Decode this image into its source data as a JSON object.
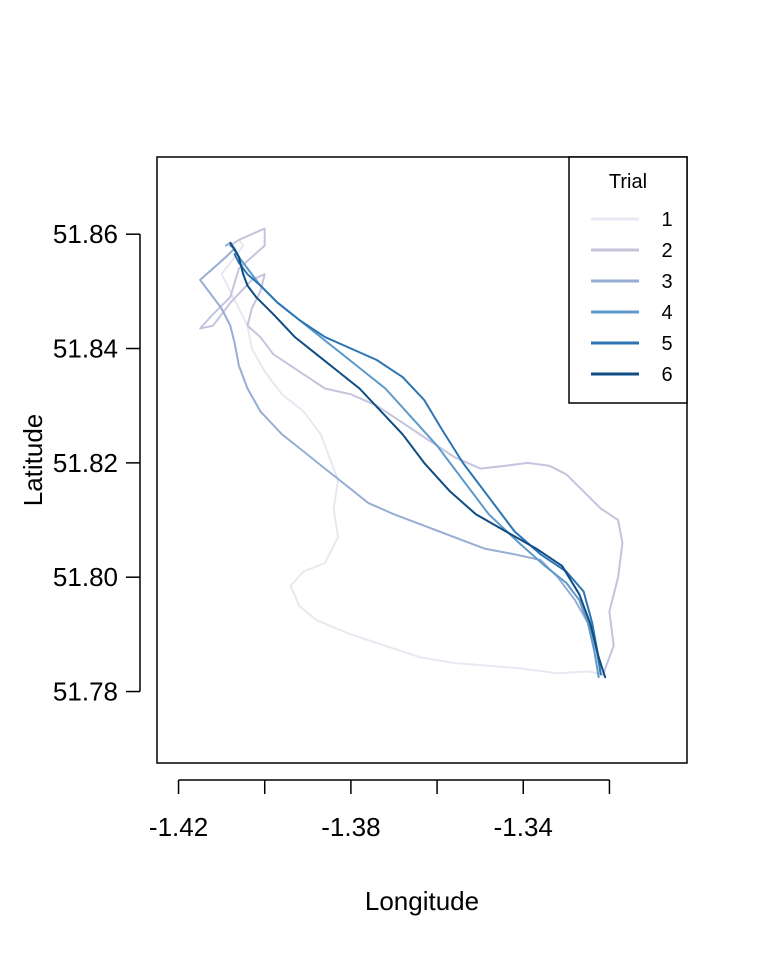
{
  "chart_data": {
    "type": "line",
    "title": "",
    "xlabel": "Longitude",
    "ylabel": "Latitude",
    "xlim": [
      -1.425,
      -1.302
    ],
    "ylim": [
      51.7675,
      51.8735
    ],
    "xticks": [
      -1.42,
      -1.4,
      -1.38,
      -1.36,
      -1.34,
      -1.32
    ],
    "xtick_labels": [
      "-1.42",
      "",
      "-1.38",
      "",
      "-1.34",
      ""
    ],
    "yticks": [
      51.78,
      51.8,
      51.82,
      51.84,
      51.86
    ],
    "ytick_labels": [
      "51.78",
      "51.80",
      "51.82",
      "51.84",
      "51.86"
    ],
    "grid": false,
    "legend": {
      "title": "Trial",
      "position": "top-right"
    },
    "series": [
      {
        "name": "1",
        "color": "#e8e8f2",
        "x": [
          -1.3215,
          -1.325,
          -1.332,
          -1.34,
          -1.348,
          -1.356,
          -1.364,
          -1.372,
          -1.38,
          -1.388,
          -1.392,
          -1.394,
          -1.391,
          -1.386,
          -1.383,
          -1.384,
          -1.383,
          -1.385,
          -1.387,
          -1.391,
          -1.396,
          -1.4,
          -1.403,
          -1.404,
          -1.406,
          -1.408,
          -1.41,
          -1.407,
          -1.405,
          -1.406
        ],
        "y": [
          51.783,
          51.7835,
          51.7832,
          51.784,
          51.7845,
          51.785,
          51.786,
          51.788,
          51.79,
          51.7925,
          51.795,
          51.7985,
          51.801,
          51.8025,
          51.807,
          51.812,
          51.817,
          51.821,
          51.825,
          51.829,
          51.832,
          51.836,
          51.84,
          51.844,
          51.847,
          51.85,
          51.853,
          51.856,
          51.858,
          51.859
        ]
      },
      {
        "name": "2",
        "color": "#c4c4dd",
        "x": [
          -1.3215,
          -1.319,
          -1.32,
          -1.318,
          -1.317,
          -1.318,
          -1.322,
          -1.326,
          -1.33,
          -1.334,
          -1.339,
          -1.344,
          -1.35,
          -1.356,
          -1.362,
          -1.368,
          -1.374,
          -1.38,
          -1.386,
          -1.392,
          -1.398,
          -1.401,
          -1.404,
          -1.403,
          -1.401,
          -1.4,
          -1.403,
          -1.408,
          -1.412,
          -1.415,
          -1.412,
          -1.408,
          -1.406,
          -1.4,
          -1.4,
          -1.403,
          -1.406,
          -1.408
        ],
        "y": [
          51.783,
          51.788,
          51.794,
          51.8,
          51.806,
          51.81,
          51.812,
          51.815,
          51.818,
          51.8195,
          51.82,
          51.8195,
          51.819,
          51.821,
          51.824,
          51.827,
          51.83,
          51.832,
          51.833,
          51.836,
          51.839,
          51.842,
          51.844,
          51.847,
          51.85,
          51.853,
          51.852,
          51.848,
          51.844,
          51.8435,
          51.846,
          51.849,
          51.854,
          51.858,
          51.861,
          51.86,
          51.859,
          51.858
        ]
      },
      {
        "name": "3",
        "color": "#97aed4",
        "x": [
          -1.322,
          -1.323,
          -1.325,
          -1.328,
          -1.332,
          -1.336,
          -1.342,
          -1.349,
          -1.356,
          -1.363,
          -1.37,
          -1.376,
          -1.381,
          -1.386,
          -1.391,
          -1.396,
          -1.401,
          -1.404,
          -1.406,
          -1.407,
          -1.408,
          -1.41,
          -1.413,
          -1.415,
          -1.412,
          -1.409,
          -1.407,
          -1.408,
          -1.409
        ],
        "y": [
          51.783,
          51.787,
          51.792,
          51.796,
          51.8,
          51.803,
          51.804,
          51.805,
          51.807,
          51.809,
          51.811,
          51.813,
          51.816,
          51.819,
          51.822,
          51.825,
          51.829,
          51.833,
          51.837,
          51.841,
          51.844,
          51.847,
          51.85,
          51.852,
          51.854,
          51.856,
          51.8575,
          51.8585,
          51.858
        ]
      },
      {
        "name": "4",
        "color": "#5e9ac9",
        "x": [
          -1.3225,
          -1.3235,
          -1.325,
          -1.327,
          -1.33,
          -1.335,
          -1.341,
          -1.348,
          -1.354,
          -1.36,
          -1.366,
          -1.372,
          -1.377,
          -1.382,
          -1.387,
          -1.392,
          -1.397,
          -1.401,
          -1.404,
          -1.406,
          -1.407,
          -1.408
        ],
        "y": [
          51.7825,
          51.787,
          51.792,
          51.796,
          51.799,
          51.802,
          51.806,
          51.811,
          51.817,
          51.823,
          51.828,
          51.833,
          51.836,
          51.839,
          51.842,
          51.845,
          51.848,
          51.851,
          51.854,
          51.856,
          51.8575,
          51.858
        ]
      },
      {
        "name": "5",
        "color": "#2c74b3",
        "x": [
          -1.322,
          -1.3228,
          -1.324,
          -1.326,
          -1.33,
          -1.336,
          -1.342,
          -1.348,
          -1.354,
          -1.359,
          -1.363,
          -1.368,
          -1.374,
          -1.38,
          -1.386,
          -1.392,
          -1.397,
          -1.401,
          -1.404,
          -1.406,
          -1.407
        ],
        "y": [
          51.783,
          51.787,
          51.792,
          51.7975,
          51.801,
          51.804,
          51.808,
          51.814,
          51.82,
          51.826,
          51.831,
          51.835,
          51.838,
          51.84,
          51.842,
          51.845,
          51.848,
          51.851,
          51.853,
          51.855,
          51.8565
        ]
      },
      {
        "name": "6",
        "color": "#0f4c83",
        "x": [
          -1.321,
          -1.3225,
          -1.3245,
          -1.327,
          -1.331,
          -1.337,
          -1.344,
          -1.351,
          -1.357,
          -1.363,
          -1.368,
          -1.373,
          -1.378,
          -1.383,
          -1.388,
          -1.393,
          -1.398,
          -1.402,
          -1.404,
          -1.405,
          -1.406,
          -1.408
        ],
        "y": [
          51.7825,
          51.786,
          51.792,
          51.797,
          51.802,
          51.805,
          51.808,
          51.811,
          51.815,
          51.82,
          51.825,
          51.829,
          51.833,
          51.836,
          51.839,
          51.842,
          51.846,
          51.849,
          51.851,
          51.853,
          51.856,
          51.8585
        ]
      }
    ]
  }
}
